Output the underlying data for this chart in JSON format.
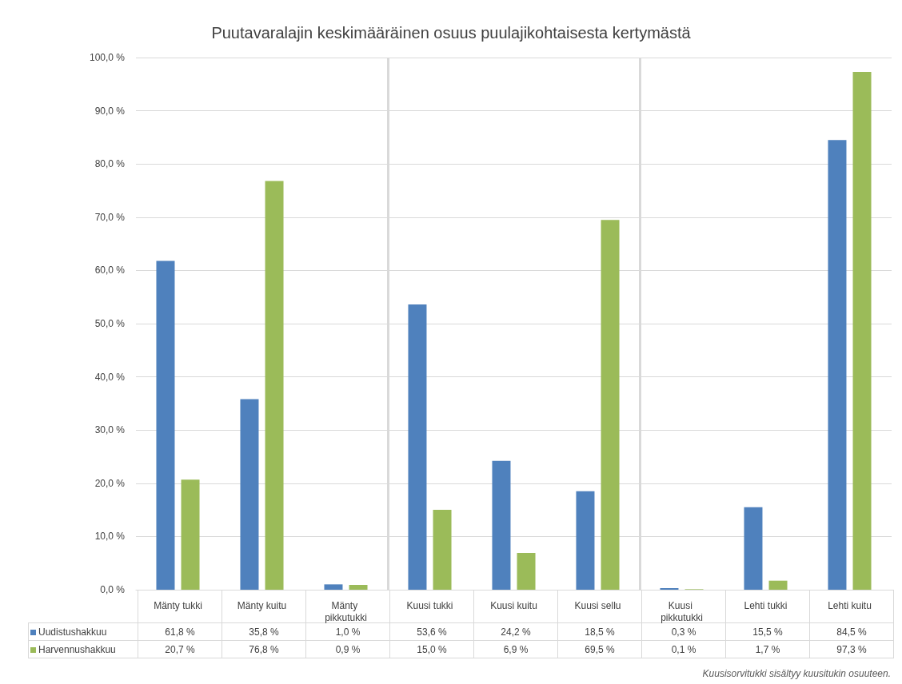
{
  "chart_data": {
    "type": "bar",
    "title": "Puutavaralajin keskimääräinen osuus puulajikohtaisesta kertymästä",
    "categories": [
      "Mänty tukki",
      "Mänty kuitu",
      "Mänty pikkutukki",
      "Kuusi tukki",
      "Kuusi kuitu",
      "Kuusi sellu",
      "Kuusi pikkutukki",
      "Lehti tukki",
      "Lehti kuitu"
    ],
    "series": [
      {
        "name": "Uudistushakkuu",
        "color": "#4f81bd",
        "values": [
          61.8,
          35.8,
          1.0,
          53.6,
          24.2,
          18.5,
          0.3,
          15.5,
          84.5
        ],
        "value_labels": [
          "61,8 %",
          "35,8 %",
          "1,0 %",
          "53,6 %",
          "24,2 %",
          "18,5 %",
          "0,3 %",
          "15,5 %",
          "84,5 %"
        ]
      },
      {
        "name": "Harvennushakkuu",
        "color": "#9bbb59",
        "values": [
          20.7,
          76.8,
          0.9,
          15.0,
          6.9,
          69.5,
          0.1,
          1.7,
          97.3
        ],
        "value_labels": [
          "20,7 %",
          "76,8 %",
          "0,9 %",
          "15,0 %",
          "6,9 %",
          "69,5 %",
          "0,1 %",
          "1,7 %",
          "97,3 %"
        ]
      }
    ],
    "ylim": [
      0,
      100
    ],
    "yticks": [
      {
        "value": 0,
        "label": "0,0 %"
      },
      {
        "value": 10,
        "label": "10,0 %"
      },
      {
        "value": 20,
        "label": "20,0 %"
      },
      {
        "value": 30,
        "label": "30,0 %"
      },
      {
        "value": 40,
        "label": "40,0 %"
      },
      {
        "value": 50,
        "label": "50,0 %"
      },
      {
        "value": 60,
        "label": "60,0 %"
      },
      {
        "value": 70,
        "label": "70,0 %"
      },
      {
        "value": 80,
        "label": "80,0 %"
      },
      {
        "value": 90,
        "label": "90,0 %"
      },
      {
        "value": 100,
        "label": "100,0 %"
      }
    ],
    "grid": "y",
    "legend": "bottom",
    "annotations": [
      "Kuusisorvitukki sisältyy kuusitukin osuuteen."
    ]
  }
}
